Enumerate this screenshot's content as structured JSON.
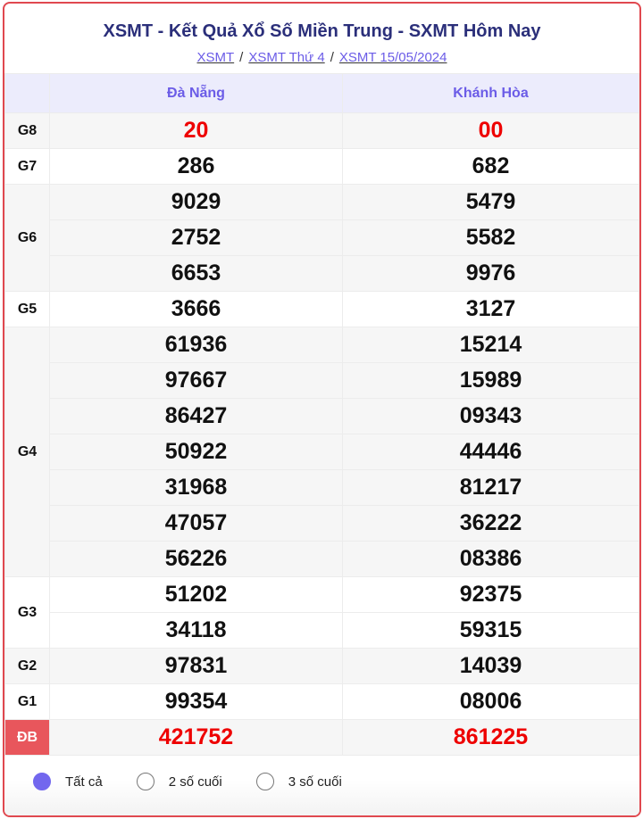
{
  "title": "XSMT - Kết Quả Xổ Số Miền Trung - SXMT Hôm Nay",
  "breadcrumbs": [
    "XSMT",
    "XSMT Thứ 4",
    "XSMT 15/05/2024"
  ],
  "columns": [
    "Đà Nẵng",
    "Khánh Hòa"
  ],
  "prizes": [
    {
      "label": "G8",
      "red": true,
      "rows": [
        [
          "20",
          "00"
        ]
      ]
    },
    {
      "label": "G7",
      "rows": [
        [
          "286",
          "682"
        ]
      ]
    },
    {
      "label": "G6",
      "rows": [
        [
          "9029",
          "5479"
        ],
        [
          "2752",
          "5582"
        ],
        [
          "6653",
          "9976"
        ]
      ]
    },
    {
      "label": "G5",
      "rows": [
        [
          "3666",
          "3127"
        ]
      ]
    },
    {
      "label": "G4",
      "rows": [
        [
          "61936",
          "15214"
        ],
        [
          "97667",
          "15989"
        ],
        [
          "86427",
          "09343"
        ],
        [
          "50922",
          "44446"
        ],
        [
          "31968",
          "81217"
        ],
        [
          "47057",
          "36222"
        ],
        [
          "56226",
          "08386"
        ]
      ]
    },
    {
      "label": "G3",
      "rows": [
        [
          "51202",
          "92375"
        ],
        [
          "34118",
          "59315"
        ]
      ]
    },
    {
      "label": "G2",
      "rows": [
        [
          "97831",
          "14039"
        ]
      ]
    },
    {
      "label": "G1",
      "rows": [
        [
          "99354",
          "08006"
        ]
      ]
    },
    {
      "label": "ĐB",
      "red": true,
      "special": true,
      "rows": [
        [
          "421752",
          "861225"
        ]
      ]
    }
  ],
  "filters": [
    {
      "label": "Tất cả",
      "selected": true
    },
    {
      "label": "2 số cuối",
      "selected": false
    },
    {
      "label": "3 số cuối",
      "selected": false
    }
  ],
  "colors": {
    "accent": "#6b5ce7",
    "title": "#2b2f7a",
    "red": "#e00000",
    "border": "#e0484f"
  }
}
